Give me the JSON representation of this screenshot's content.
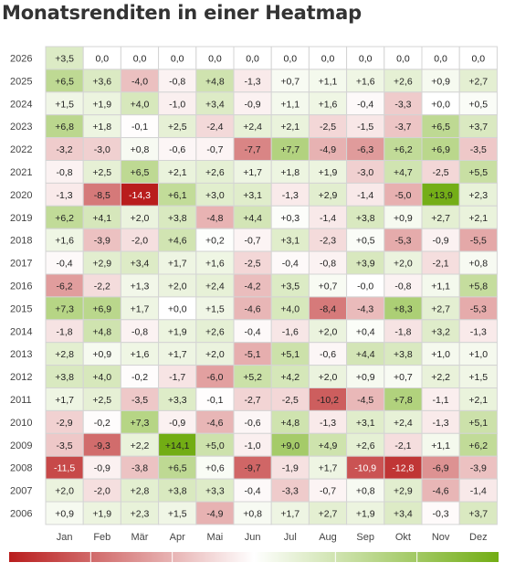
{
  "title": "Monatsrenditen in einer Heatmap",
  "colors": {
    "min": "#b91d1d",
    "mid": "#ffffff",
    "max": "#72ad14"
  },
  "chart_data": {
    "type": "heatmap",
    "title": "Monatsrenditen in einer Heatmap",
    "x_labels": [
      "Jan",
      "Feb",
      "Mär",
      "Apr",
      "Mai",
      "Jun",
      "Jul",
      "Aug",
      "Sep",
      "Okt",
      "Nov",
      "Dez"
    ],
    "y_labels": [
      "2026",
      "2025",
      "2024",
      "2023",
      "2022",
      "2021",
      "2020",
      "2019",
      "2018",
      "2017",
      "2016",
      "2015",
      "2014",
      "2013",
      "2012",
      "2011",
      "2010",
      "2009",
      "2008",
      "2007",
      "2006"
    ],
    "values": [
      [
        3.5,
        0.0,
        0.0,
        0.0,
        0.0,
        0.0,
        0.0,
        0.0,
        0.0,
        0.0,
        0.0,
        0.0
      ],
      [
        6.5,
        3.6,
        -4.0,
        -0.8,
        4.8,
        -1.3,
        0.7,
        1.1,
        1.6,
        2.6,
        0.9,
        2.7
      ],
      [
        1.5,
        1.9,
        4.0,
        -1.0,
        3.4,
        -0.9,
        1.1,
        1.6,
        -0.4,
        -3.3,
        0.0,
        0.5
      ],
      [
        6.8,
        1.8,
        -0.1,
        2.5,
        -2.4,
        2.4,
        2.1,
        -2.5,
        -1.5,
        -3.7,
        6.5,
        3.7
      ],
      [
        -3.2,
        -3.0,
        0.8,
        -0.6,
        -0.7,
        -7.7,
        7.7,
        -4.9,
        -6.3,
        6.2,
        6.9,
        -3.5
      ],
      [
        -0.8,
        2.5,
        6.5,
        2.1,
        2.6,
        1.7,
        1.8,
        1.9,
        -3.0,
        4.7,
        -2.5,
        5.5
      ],
      [
        -1.3,
        -8.5,
        -14.3,
        6.1,
        3.0,
        3.1,
        -1.3,
        2.9,
        -1.4,
        -5.0,
        13.9,
        2.3
      ],
      [
        6.2,
        4.1,
        2.0,
        3.8,
        -4.8,
        4.4,
        0.3,
        -1.4,
        3.8,
        0.9,
        2.7,
        2.1
      ],
      [
        1.6,
        -3.9,
        -2.0,
        4.6,
        0.2,
        -0.7,
        3.1,
        -2.3,
        0.5,
        -5.3,
        -0.9,
        -5.5
      ],
      [
        -0.4,
        2.9,
        3.4,
        1.7,
        1.6,
        -2.5,
        -0.4,
        -0.8,
        3.9,
        2.0,
        -2.1,
        0.8
      ],
      [
        -6.2,
        -2.2,
        1.3,
        2.0,
        2.4,
        -4.2,
        3.5,
        0.7,
        -0.0,
        -0.8,
        1.1,
        5.8
      ],
      [
        7.3,
        6.9,
        1.7,
        0.0,
        1.5,
        -4.6,
        4.0,
        -8.4,
        -4.3,
        8.3,
        2.7,
        -5.3
      ],
      [
        -1.8,
        4.8,
        -0.8,
        1.9,
        2.6,
        -0.4,
        -1.6,
        2.0,
        0.4,
        -1.8,
        3.2,
        -1.3
      ],
      [
        2.8,
        0.9,
        1.6,
        1.7,
        2.0,
        -5.1,
        5.1,
        -0.6,
        4.4,
        3.8,
        1.0,
        1.0
      ],
      [
        3.8,
        4.0,
        -0.2,
        -1.7,
        -6.0,
        5.2,
        4.2,
        2.0,
        0.9,
        0.7,
        2.2,
        1.5
      ],
      [
        1.7,
        2.5,
        -3.5,
        3.3,
        -0.1,
        -2.7,
        -2.5,
        -10.2,
        -4.5,
        7.8,
        -1.1,
        2.1
      ],
      [
        -2.9,
        -0.2,
        7.3,
        -0.9,
        -4.6,
        -0.6,
        4.8,
        -1.3,
        3.1,
        2.4,
        -1.3,
        5.1
      ],
      [
        -3.5,
        -9.3,
        2.2,
        14.1,
        5.0,
        -1.0,
        9.0,
        4.9,
        2.6,
        -2.1,
        1.1,
        6.2
      ],
      [
        -11.5,
        -0.9,
        -3.8,
        6.5,
        0.6,
        -9.7,
        -1.9,
        1.7,
        -10.9,
        -12.8,
        -6.9,
        -3.9
      ],
      [
        2.0,
        -2.0,
        2.8,
        3.8,
        3.3,
        -0.4,
        -3.3,
        -0.7,
        0.8,
        2.9,
        -4.6,
        -1.4
      ],
      [
        0.9,
        1.9,
        2.3,
        1.5,
        -4.9,
        0.8,
        1.7,
        2.7,
        1.9,
        3.4,
        -0.3,
        3.7
      ]
    ],
    "value_labels": [
      [
        "+3,5",
        "0,0",
        "0,0",
        "0,0",
        "0,0",
        "0,0",
        "0,0",
        "0,0",
        "0,0",
        "0,0",
        "0,0",
        "0,0"
      ],
      [
        "+6,5",
        "+3,6",
        "-4,0",
        "-0,8",
        "+4,8",
        "-1,3",
        "+0,7",
        "+1,1",
        "+1,6",
        "+2,6",
        "+0,9",
        "+2,7"
      ],
      [
        "+1,5",
        "+1,9",
        "+4,0",
        "-1,0",
        "+3,4",
        "-0,9",
        "+1,1",
        "+1,6",
        "-0,4",
        "-3,3",
        "+0,0",
        "+0,5"
      ],
      [
        "+6,8",
        "+1,8",
        "-0,1",
        "+2,5",
        "-2,4",
        "+2,4",
        "+2,1",
        "-2,5",
        "-1,5",
        "-3,7",
        "+6,5",
        "+3,7"
      ],
      [
        "-3,2",
        "-3,0",
        "+0,8",
        "-0,6",
        "-0,7",
        "-7,7",
        "+7,7",
        "-4,9",
        "-6,3",
        "+6,2",
        "+6,9",
        "-3,5"
      ],
      [
        "-0,8",
        "+2,5",
        "+6,5",
        "+2,1",
        "+2,6",
        "+1,7",
        "+1,8",
        "+1,9",
        "-3,0",
        "+4,7",
        "-2,5",
        "+5,5"
      ],
      [
        "-1,3",
        "-8,5",
        "-14,3",
        "+6,1",
        "+3,0",
        "+3,1",
        "-1,3",
        "+2,9",
        "-1,4",
        "-5,0",
        "+13,9",
        "+2,3"
      ],
      [
        "+6,2",
        "+4,1",
        "+2,0",
        "+3,8",
        "-4,8",
        "+4,4",
        "+0,3",
        "-1,4",
        "+3,8",
        "+0,9",
        "+2,7",
        "+2,1"
      ],
      [
        "+1,6",
        "-3,9",
        "-2,0",
        "+4,6",
        "+0,2",
        "-0,7",
        "+3,1",
        "-2,3",
        "+0,5",
        "-5,3",
        "-0,9",
        "-5,5"
      ],
      [
        "-0,4",
        "+2,9",
        "+3,4",
        "+1,7",
        "+1,6",
        "-2,5",
        "-0,4",
        "-0,8",
        "+3,9",
        "+2,0",
        "-2,1",
        "+0,8"
      ],
      [
        "-6,2",
        "-2,2",
        "+1,3",
        "+2,0",
        "+2,4",
        "-4,2",
        "+3,5",
        "+0,7",
        "-0,0",
        "-0,8",
        "+1,1",
        "+5,8"
      ],
      [
        "+7,3",
        "+6,9",
        "+1,7",
        "+0,0",
        "+1,5",
        "-4,6",
        "+4,0",
        "-8,4",
        "-4,3",
        "+8,3",
        "+2,7",
        "-5,3"
      ],
      [
        "-1,8",
        "+4,8",
        "-0,8",
        "+1,9",
        "+2,6",
        "-0,4",
        "-1,6",
        "+2,0",
        "+0,4",
        "-1,8",
        "+3,2",
        "-1,3"
      ],
      [
        "+2,8",
        "+0,9",
        "+1,6",
        "+1,7",
        "+2,0",
        "-5,1",
        "+5,1",
        "-0,6",
        "+4,4",
        "+3,8",
        "+1,0",
        "+1,0"
      ],
      [
        "+3,8",
        "+4,0",
        "-0,2",
        "-1,7",
        "-6,0",
        "+5,2",
        "+4,2",
        "+2,0",
        "+0,9",
        "+0,7",
        "+2,2",
        "+1,5"
      ],
      [
        "+1,7",
        "+2,5",
        "-3,5",
        "+3,3",
        "-0,1",
        "-2,7",
        "-2,5",
        "-10,2",
        "-4,5",
        "+7,8",
        "-1,1",
        "+2,1"
      ],
      [
        "-2,9",
        "-0,2",
        "+7,3",
        "-0,9",
        "-4,6",
        "-0,6",
        "+4,8",
        "-1,3",
        "+3,1",
        "+2,4",
        "-1,3",
        "+5,1"
      ],
      [
        "-3,5",
        "-9,3",
        "+2,2",
        "+14,1",
        "+5,0",
        "-1,0",
        "+9,0",
        "+4,9",
        "+2,6",
        "-2,1",
        "+1,1",
        "+6,2"
      ],
      [
        "-11,5",
        "-0,9",
        "-3,8",
        "+6,5",
        "+0,6",
        "-9,7",
        "-1,9",
        "+1,7",
        "-10,9",
        "-12,8",
        "-6,9",
        "-3,9"
      ],
      [
        "+2,0",
        "-2,0",
        "+2,8",
        "+3,8",
        "+3,3",
        "-0,4",
        "-3,3",
        "-0,7",
        "+0,8",
        "+2,9",
        "-4,6",
        "-1,4"
      ],
      [
        "+0,9",
        "+1,9",
        "+2,3",
        "+1,5",
        "-4,9",
        "+0,8",
        "+1,7",
        "+2,7",
        "+1,9",
        "+3,4",
        "-0,3",
        "+3,7"
      ]
    ],
    "color_scale": {
      "min": -14.3,
      "max": 14.1
    },
    "legend": "bottom",
    "grid": true
  }
}
